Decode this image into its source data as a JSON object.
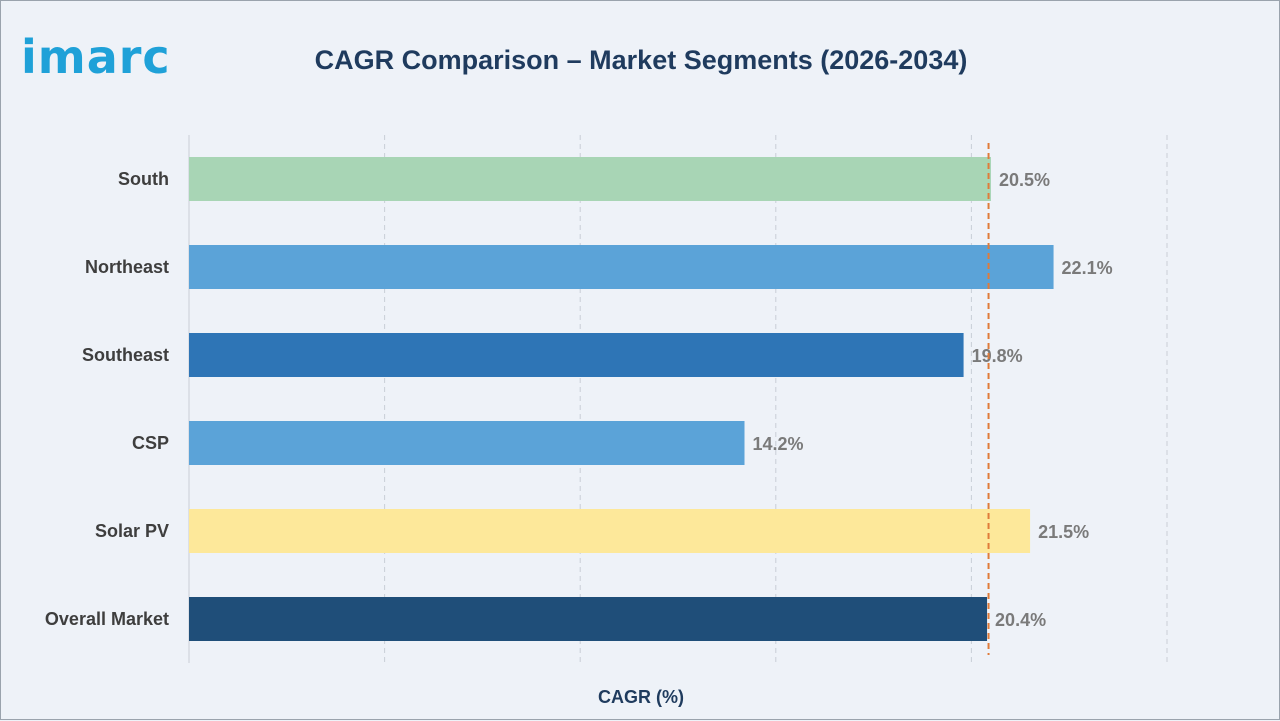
{
  "logo_text": "imarc",
  "chart_data": {
    "type": "bar",
    "orientation": "horizontal",
    "title": "CAGR Comparison – Market Segments (2026-2034)",
    "xlabel": "CAGR (%)",
    "ylabel": "",
    "categories": [
      "South",
      "Northeast",
      "Southeast",
      "CSP",
      "Solar PV",
      "Overall Market"
    ],
    "values": [
      20.5,
      22.1,
      19.8,
      14.2,
      21.5,
      20.4
    ],
    "value_labels": [
      "20.5%",
      "22.1%",
      "19.8%",
      "14.2%",
      "21.5%",
      "20.4%"
    ],
    "colors": [
      "#a8d5b5",
      "#5ba3d8",
      "#2e75b6",
      "#5ba3d8",
      "#fde89a",
      "#1f4e79"
    ],
    "xlim": [
      0,
      25
    ],
    "grid": true,
    "reference_line": {
      "value": 20.4,
      "style": "dashed",
      "color": "#e07b39"
    }
  }
}
